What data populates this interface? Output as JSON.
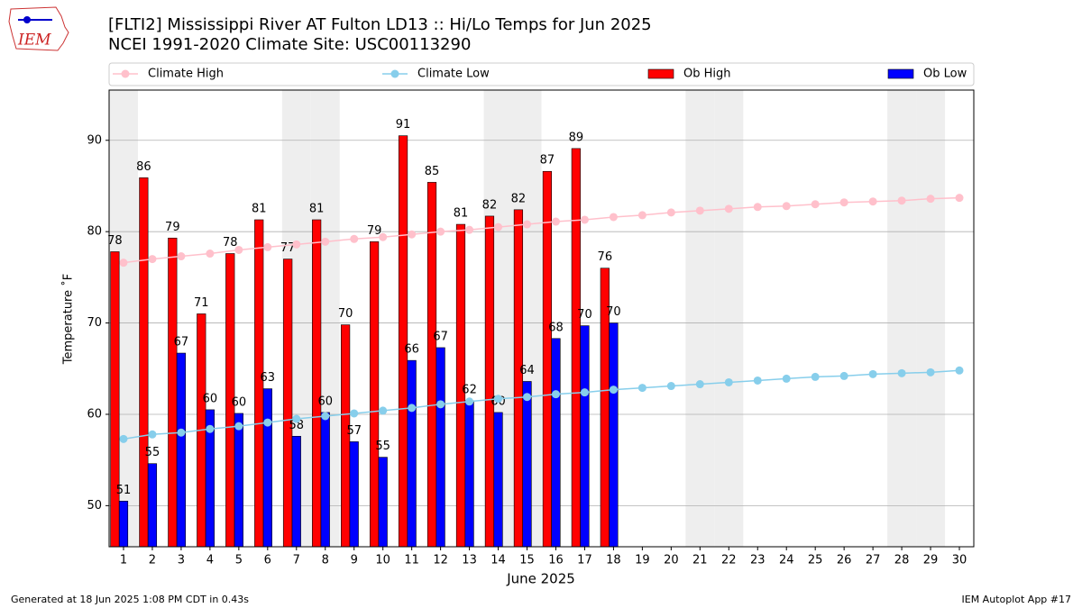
{
  "chart_data": {
    "type": "bar",
    "title": "[FLTI2] Mississippi River  AT Fulton LD13 :: Hi/Lo Temps for Jun 2025",
    "subtitle": "NCEI 1991-2020 Climate Site: USC00113290",
    "xlabel": "June 2025",
    "ylabel": "Temperature ˚F",
    "logo_text": "IEM",
    "footer_left": "Generated at 18 Jun 2025 1:08 PM CDT in 0.43s",
    "footer_right": "IEM Autoplot App #17",
    "x": [
      1,
      2,
      3,
      4,
      5,
      6,
      7,
      8,
      9,
      10,
      11,
      12,
      13,
      14,
      15,
      16,
      17,
      18,
      19,
      20,
      21,
      22,
      23,
      24,
      25,
      26,
      27,
      28,
      29,
      30
    ],
    "xlim": [
      0.5,
      30.5
    ],
    "xticks": [
      1,
      2,
      3,
      4,
      5,
      6,
      7,
      8,
      9,
      10,
      11,
      12,
      13,
      14,
      15,
      16,
      17,
      18,
      19,
      20,
      21,
      22,
      23,
      24,
      25,
      26,
      27,
      28,
      29,
      30
    ],
    "ylim": [
      45.5,
      95.5
    ],
    "yticks": [
      50,
      60,
      70,
      80,
      90
    ],
    "grid": true,
    "shaded_days": [
      1,
      7,
      8,
      14,
      15,
      21,
      22,
      28,
      29
    ],
    "series": [
      {
        "name": "Climate High",
        "type": "line",
        "color": "#ffc0cb",
        "values": [
          76.6,
          77.0,
          77.3,
          77.6,
          78.0,
          78.3,
          78.6,
          78.9,
          79.2,
          79.4,
          79.7,
          80.0,
          80.2,
          80.5,
          80.8,
          81.1,
          81.3,
          81.6,
          81.8,
          82.1,
          82.3,
          82.5,
          82.7,
          82.8,
          83.0,
          83.2,
          83.3,
          83.4,
          83.6,
          83.7
        ]
      },
      {
        "name": "Climate Low",
        "type": "line",
        "color": "#87ceeb",
        "values": [
          57.3,
          57.8,
          58.0,
          58.4,
          58.7,
          59.1,
          59.5,
          59.8,
          60.1,
          60.4,
          60.7,
          61.1,
          61.4,
          61.7,
          61.9,
          62.2,
          62.4,
          62.7,
          62.9,
          63.1,
          63.3,
          63.5,
          63.7,
          63.9,
          64.1,
          64.2,
          64.4,
          64.5,
          64.6,
          64.8
        ]
      },
      {
        "name": "Ob High",
        "type": "bar",
        "color": "#ff0000",
        "values": [
          77.8,
          85.9,
          79.3,
          71.0,
          77.6,
          81.3,
          77.0,
          81.3,
          69.8,
          78.9,
          90.5,
          85.4,
          80.8,
          81.7,
          82.4,
          86.6,
          89.1,
          76.0,
          null,
          null,
          null,
          null,
          null,
          null,
          null,
          null,
          null,
          null,
          null,
          null
        ],
        "value_labels": [
          "78",
          "86",
          "79",
          "71",
          "78",
          "81",
          "77",
          "81",
          "70",
          "79",
          "91",
          "85",
          "81",
          "82",
          "82",
          "87",
          "89",
          "76",
          null,
          null,
          null,
          null,
          null,
          null,
          null,
          null,
          null,
          null,
          null,
          null
        ]
      },
      {
        "name": "Ob Low",
        "type": "bar",
        "color": "#0000ff",
        "values": [
          50.5,
          54.6,
          66.7,
          60.5,
          60.1,
          62.8,
          57.6,
          60.2,
          57.0,
          55.3,
          65.9,
          67.3,
          61.5,
          60.2,
          63.6,
          68.3,
          69.7,
          70.0,
          null,
          null,
          null,
          null,
          null,
          null,
          null,
          null,
          null,
          null,
          null,
          null
        ],
        "value_labels": [
          "51",
          "55",
          "67",
          "60",
          "60",
          "63",
          "58",
          "60",
          "57",
          "55",
          "66",
          "67",
          "62",
          "60",
          "64",
          "68",
          "70",
          "70",
          null,
          null,
          null,
          null,
          null,
          null,
          null,
          null,
          null,
          null,
          null,
          null
        ]
      }
    ]
  }
}
